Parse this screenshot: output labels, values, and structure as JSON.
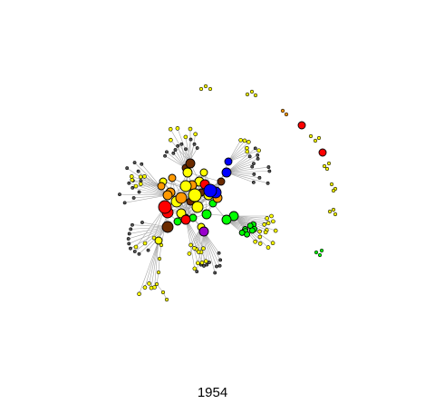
{
  "caption": "1954",
  "colors": {
    "edge": "#a6a6a6",
    "node_stroke": "#000000",
    "yellow": "#ffff00",
    "orange": "#ff9900",
    "red": "#ff0000",
    "blue": "#0000ff",
    "green": "#00ff00",
    "purple": "#9900cc",
    "brown": "#6b2b00",
    "small": "#555555"
  }
}
